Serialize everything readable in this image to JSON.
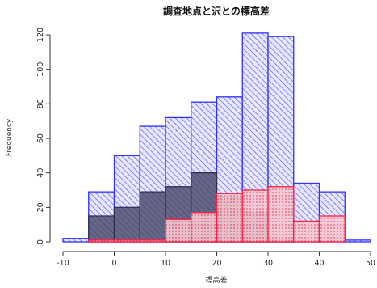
{
  "chart_data": {
    "type": "bar",
    "title": "調査地点と沢との標高差",
    "xlabel": "標高差",
    "ylabel": "Frequency",
    "xlim": [
      -10,
      50
    ],
    "ylim": [
      0,
      120
    ],
    "xticks": [
      -10,
      0,
      10,
      20,
      30,
      40,
      50
    ],
    "yticks": [
      0,
      20,
      40,
      60,
      80,
      100,
      120
    ],
    "series": [
      {
        "color": "#3a3aff",
        "hatch": "diagonal",
        "bins": [
          {
            "x0": -10,
            "x1": -5,
            "count": 2
          },
          {
            "x0": -5,
            "x1": 0,
            "count": 29
          },
          {
            "x0": 0,
            "x1": 5,
            "count": 50
          },
          {
            "x0": 5,
            "x1": 10,
            "count": 67
          },
          {
            "x0": 10,
            "x1": 15,
            "count": 72
          },
          {
            "x0": 15,
            "x1": 20,
            "count": 81
          },
          {
            "x0": 20,
            "x1": 25,
            "count": 84
          },
          {
            "x0": 25,
            "x1": 30,
            "count": 121
          },
          {
            "x0": 30,
            "x1": 35,
            "count": 119
          },
          {
            "x0": 35,
            "x1": 40,
            "count": 34
          },
          {
            "x0": 40,
            "x1": 45,
            "count": 29
          },
          {
            "x0": 45,
            "x1": 50,
            "count": 1
          }
        ]
      },
      {
        "color": "#404060",
        "hatch": "solid",
        "bins": [
          {
            "x0": -5,
            "x1": 0,
            "count": 15
          },
          {
            "x0": 0,
            "x1": 5,
            "count": 20
          },
          {
            "x0": 5,
            "x1": 10,
            "count": 29
          },
          {
            "x0": 10,
            "x1": 15,
            "count": 32
          },
          {
            "x0": 15,
            "x1": 20,
            "count": 40
          },
          {
            "x0": 20,
            "x1": 25,
            "count": 26
          },
          {
            "x0": 25,
            "x1": 30,
            "count": 17
          },
          {
            "x0": 30,
            "x1": 35,
            "count": 1
          }
        ]
      },
      {
        "color": "#ff2040",
        "hatch": "dots",
        "bins": [
          {
            "x0": -5,
            "x1": 0,
            "count": 1
          },
          {
            "x0": 0,
            "x1": 5,
            "count": 1
          },
          {
            "x0": 5,
            "x1": 10,
            "count": 1
          },
          {
            "x0": 10,
            "x1": 15,
            "count": 13
          },
          {
            "x0": 15,
            "x1": 20,
            "count": 17
          },
          {
            "x0": 20,
            "x1": 25,
            "count": 28
          },
          {
            "x0": 25,
            "x1": 30,
            "count": 30
          },
          {
            "x0": 30,
            "x1": 35,
            "count": 32
          },
          {
            "x0": 35,
            "x1": 40,
            "count": 12
          },
          {
            "x0": 40,
            "x1": 45,
            "count": 15
          }
        ]
      }
    ]
  }
}
